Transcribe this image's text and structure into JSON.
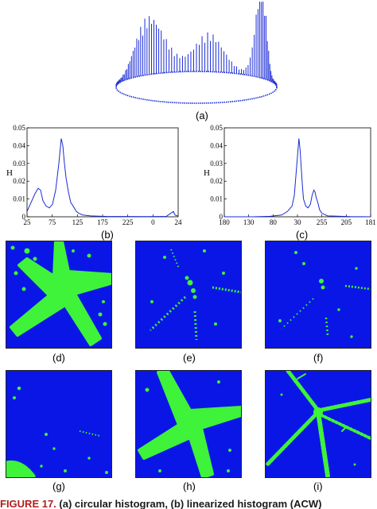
{
  "figure": {
    "labels": [
      "(a)",
      "(b)",
      "(c)",
      "(d)",
      "(e)",
      "(f)",
      "(g)",
      "(h)",
      "(i)"
    ],
    "caption_prefix": "FIGURE 17.",
    "caption_text": " (a) circular histogram, (b) linearized histogram (ACW)"
  },
  "chart_data": [
    {
      "type": "line",
      "panel": "(b)",
      "title": "",
      "xlabel": "",
      "ylabel": "H",
      "ylim": [
        0,
        0.05
      ],
      "yticks": [
        "0.05",
        "0.04",
        "0.03",
        "0.02",
        "0.01",
        "0"
      ],
      "xticks": [
        "25",
        "75",
        "125",
        "175",
        "225",
        "0",
        "24"
      ],
      "x": [
        0,
        5,
        10,
        14,
        17,
        20,
        24,
        28,
        32,
        36,
        40,
        43,
        45,
        47,
        49,
        52,
        55,
        58,
        62,
        65,
        70,
        80,
        100,
        150,
        175,
        184,
        186,
        189
      ],
      "y": [
        0.003,
        0.008,
        0.013,
        0.016,
        0.015,
        0.009,
        0.006,
        0.005,
        0.007,
        0.015,
        0.03,
        0.044,
        0.04,
        0.03,
        0.022,
        0.014,
        0.008,
        0.006,
        0.003,
        0.002,
        0.001,
        0.0005,
        0.0002,
        0.0001,
        0.0002,
        0.003,
        0.001,
        0.0005
      ],
      "grid": false
    },
    {
      "type": "line",
      "panel": "(c)",
      "title": "",
      "xlabel": "",
      "ylabel": "H",
      "ylim": [
        0,
        0.05
      ],
      "yticks": [
        "0.05",
        "0.04",
        "0.03",
        "0.02",
        "0.01",
        "0"
      ],
      "xticks": [
        "180",
        "130",
        "80",
        "30",
        "255",
        "205",
        "181"
      ],
      "x": [
        0,
        50,
        80,
        100,
        110,
        118,
        122,
        126,
        130,
        132,
        134,
        136,
        138,
        142,
        146,
        150,
        153,
        156,
        158,
        160,
        163,
        166,
        170,
        180,
        220,
        255
      ],
      "y": [
        0,
        0,
        0.0003,
        0.001,
        0.003,
        0.006,
        0.012,
        0.028,
        0.044,
        0.038,
        0.028,
        0.018,
        0.01,
        0.006,
        0.005,
        0.007,
        0.012,
        0.015,
        0.014,
        0.011,
        0.008,
        0.004,
        0.002,
        0.0005,
        0.0001,
        0
      ],
      "grid": false
    }
  ]
}
